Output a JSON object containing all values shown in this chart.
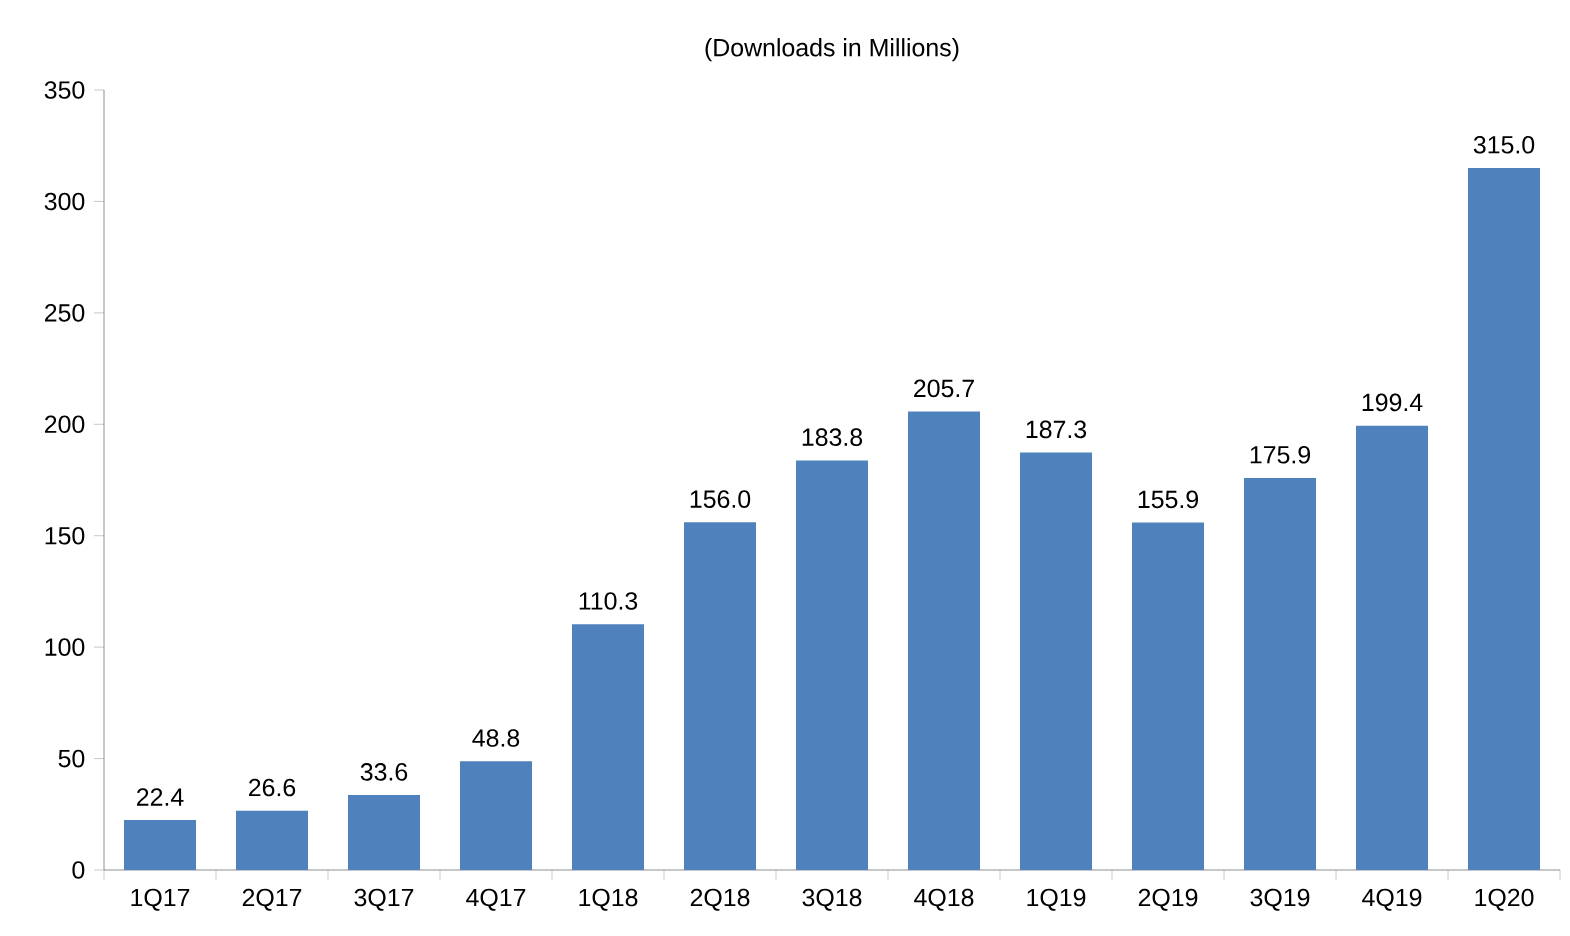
{
  "chart_data": {
    "type": "bar",
    "title": "(Downloads in Millions)",
    "categories": [
      "1Q17",
      "2Q17",
      "3Q17",
      "4Q17",
      "1Q18",
      "2Q18",
      "3Q18",
      "4Q18",
      "1Q19",
      "2Q19",
      "3Q19",
      "4Q19",
      "1Q20"
    ],
    "values": [
      22.4,
      26.6,
      33.6,
      48.8,
      110.3,
      156.0,
      183.8,
      205.7,
      187.3,
      155.9,
      175.9,
      199.4,
      315.0
    ],
    "value_labels": [
      "22.4",
      "26.6",
      "33.6",
      "48.8",
      "110.3",
      "156.0",
      "183.8",
      "205.7",
      "187.3",
      "155.9",
      "175.9",
      "199.4",
      "315.0"
    ],
    "color": "#4f81bd",
    "ylim": [
      0,
      350
    ],
    "yticks": [
      0,
      50,
      100,
      150,
      200,
      250,
      300,
      350
    ],
    "grid": false
  }
}
